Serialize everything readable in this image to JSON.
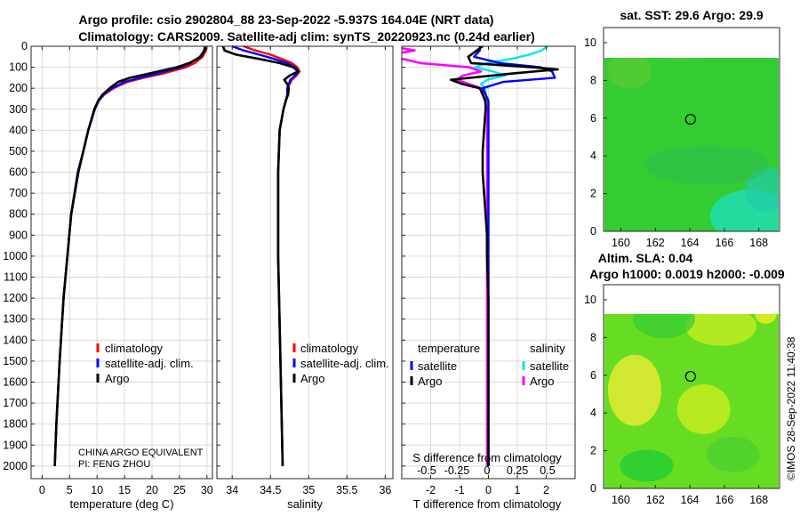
{
  "title_line1": "Argo profile: csio 2902804_88 23-Sep-2022 -5.937S 164.04E (NRT data)",
  "title_line2": "Climatology: CARS2009. Satellite-adj clim: synTS_20220923.nc (0.24d earlier)",
  "side_stamp": "©IMOS 28-Sep-2022 11:40:38",
  "colors": {
    "climatology": "#ff0000",
    "satellite": "#0000ff",
    "argo": "#000000",
    "sal_satellite": "#00e5ee",
    "sal_argo": "#ff00ff",
    "map_green": "#22cc33",
    "map_teal": "#22ddaa",
    "map_yellow": "#ccee22"
  },
  "chart_data": [
    {
      "type": "line",
      "name": "temperature",
      "xlabel": "temperature (deg C)",
      "ylabel": "",
      "xlim": [
        -2,
        31
      ],
      "ylim": [
        0,
        2060
      ],
      "y_reversed": true,
      "xticks": [
        0,
        5,
        10,
        15,
        20,
        25,
        30
      ],
      "yticks": [
        0,
        100,
        200,
        300,
        400,
        500,
        600,
        700,
        800,
        900,
        1000,
        1100,
        1200,
        1300,
        1400,
        1500,
        1600,
        1700,
        1800,
        1900,
        2000
      ],
      "legend": [
        "climatology",
        "satellite-adj. clim.",
        "Argo"
      ],
      "legend_position": "lower-right",
      "annotation": [
        "CHINA ARGO EQUIVALENT",
        "PI: FENG ZHOU"
      ],
      "series": [
        {
          "name": "climatology",
          "color": "#ff0000",
          "depth": [
            0,
            20,
            50,
            80,
            100,
            130,
            150,
            170,
            200,
            230,
            260,
            300,
            400,
            500,
            600,
            800,
            1000,
            1200,
            1500,
            1800,
            2000
          ],
          "values": [
            29.9,
            29.8,
            29.2,
            27.8,
            26.2,
            22.0,
            18.5,
            15.5,
            13.0,
            11.3,
            10.3,
            9.6,
            8.4,
            7.5,
            6.5,
            5.3,
            4.6,
            3.9,
            3.2,
            2.6,
            2.3
          ]
        },
        {
          "name": "satellite-adj. clim.",
          "color": "#0000ff",
          "depth": [
            0,
            20,
            50,
            80,
            100,
            130,
            150,
            170,
            200,
            230,
            260,
            300,
            400,
            500,
            600,
            800,
            1000,
            1200,
            1500,
            1800,
            2000
          ],
          "values": [
            29.6,
            29.5,
            28.7,
            27.0,
            25.2,
            21.0,
            17.8,
            15.0,
            12.7,
            11.2,
            10.3,
            9.6,
            8.4,
            7.5,
            6.5,
            5.3,
            4.6,
            3.9,
            3.2,
            2.6,
            2.3
          ]
        },
        {
          "name": "Argo",
          "color": "#000000",
          "depth": [
            0,
            20,
            50,
            80,
            100,
            130,
            150,
            170,
            200,
            230,
            260,
            300,
            400,
            500,
            600,
            800,
            1000,
            1200,
            1500,
            1800,
            2000
          ],
          "values": [
            29.8,
            29.6,
            28.9,
            26.8,
            24.5,
            19.5,
            16.0,
            13.8,
            12.3,
            11.0,
            10.2,
            9.5,
            8.4,
            7.5,
            6.6,
            5.3,
            4.6,
            3.9,
            3.2,
            2.6,
            2.3
          ]
        }
      ]
    },
    {
      "type": "line",
      "name": "salinity",
      "xlabel": "salinity",
      "xlim": [
        33.8,
        36.1
      ],
      "ylim": [
        0,
        2060
      ],
      "y_reversed": true,
      "xticks": [
        34,
        34.5,
        35,
        35.5,
        36
      ],
      "xtick_labels": [
        "34",
        "34.5",
        "35",
        "35.5",
        "36"
      ],
      "legend": [
        "climatology",
        "satellite-adj. clim.",
        "Argo"
      ],
      "legend_position": "lower-right",
      "series": [
        {
          "name": "climatology",
          "color": "#ff0000",
          "depth": [
            0,
            20,
            40,
            60,
            80,
            100,
            120,
            140,
            160,
            180,
            200,
            230,
            260,
            300,
            400,
            600,
            800,
            1000,
            1500,
            2000
          ],
          "values": [
            34.15,
            34.3,
            34.5,
            34.65,
            34.78,
            34.85,
            34.88,
            34.84,
            34.78,
            34.75,
            34.72,
            34.72,
            34.7,
            34.67,
            34.62,
            34.6,
            34.6,
            34.6,
            34.63,
            34.66
          ]
        },
        {
          "name": "satellite-adj. clim.",
          "color": "#0000ff",
          "depth": [
            0,
            20,
            40,
            60,
            80,
            100,
            120,
            140,
            160,
            180,
            200,
            230,
            260,
            300,
            400,
            600,
            800,
            1000,
            1500,
            2000
          ],
          "values": [
            34.0,
            34.15,
            34.35,
            34.55,
            34.72,
            34.82,
            34.87,
            34.82,
            34.76,
            34.74,
            34.72,
            34.72,
            34.7,
            34.67,
            34.62,
            34.6,
            34.6,
            34.6,
            34.63,
            34.66
          ]
        },
        {
          "name": "Argo",
          "color": "#000000",
          "depth": [
            0,
            20,
            40,
            60,
            80,
            100,
            120,
            140,
            160,
            180,
            200,
            230,
            260,
            300,
            400,
            600,
            800,
            1000,
            1500,
            2000
          ],
          "values": [
            33.88,
            33.9,
            34.05,
            34.35,
            34.62,
            34.8,
            34.86,
            34.75,
            34.68,
            34.72,
            34.74,
            34.73,
            34.7,
            34.67,
            34.62,
            34.6,
            34.6,
            34.6,
            34.63,
            34.66
          ]
        }
      ]
    },
    {
      "type": "line",
      "name": "difference",
      "xlabel": "T difference from climatology",
      "xlabel_top": "S difference from climatology",
      "xlim": [
        -3,
        3
      ],
      "ylim": [
        0,
        2060
      ],
      "y_reversed": true,
      "xticks": [
        -2,
        -1,
        0,
        1,
        2
      ],
      "xtick_labels": [
        "-2",
        "-1",
        "0",
        "1",
        "2"
      ],
      "s_xticks": [
        -0.5,
        -0.25,
        0,
        0.25,
        0.5
      ],
      "s_xtick_labels": [
        "-0.5",
        "-0.25",
        "0",
        "0.25",
        "0.5"
      ],
      "legend_temperature": [
        "temperature",
        "satellite",
        "Argo"
      ],
      "legend_salinity": [
        "salinity",
        "satellite",
        "Argo"
      ],
      "series": [
        {
          "name": "temperature satellite",
          "color": "#0000ff",
          "depth": [
            0,
            20,
            50,
            80,
            100,
            120,
            150,
            170,
            200,
            230,
            260,
            300,
            400,
            600,
            800,
            1000,
            2000
          ],
          "values": [
            -0.3,
            -0.3,
            -0.5,
            0.4,
            1.8,
            2.2,
            2.3,
            0.5,
            -0.2,
            -0.1,
            0,
            0,
            0,
            0,
            0,
            0,
            0
          ]
        },
        {
          "name": "temperature Argo",
          "color": "#000000",
          "depth": [
            0,
            20,
            50,
            80,
            100,
            110,
            130,
            160,
            180,
            200,
            230,
            260,
            300,
            400,
            500,
            600,
            700,
            800,
            900,
            1000,
            1200,
            1500,
            1800,
            2000
          ],
          "values": [
            -0.2,
            -0.4,
            -0.7,
            -0.6,
            1.5,
            2.4,
            0.8,
            -1.3,
            -0.9,
            -0.3,
            -0.2,
            -0.1,
            -0.1,
            -0.15,
            -0.2,
            -0.2,
            -0.15,
            -0.1,
            -0.05,
            -0.05,
            0,
            0,
            0,
            0
          ]
        },
        {
          "name": "salinity satellite",
          "color": "#00e5ee",
          "depth": [
            0,
            20,
            40,
            60,
            80,
            100,
            120,
            140,
            160,
            180,
            200,
            260,
            300,
            500,
            1000,
            1500,
            2000
          ],
          "values": [
            0.5,
            0.45,
            0.35,
            0.2,
            0.0,
            -0.1,
            0.05,
            0.15,
            0.0,
            -0.05,
            -0.02,
            0,
            0,
            0,
            0,
            0,
            0
          ]
        },
        {
          "name": "salinity Argo",
          "color": "#ff00ff",
          "depth": [
            0,
            20,
            40,
            60,
            80,
            100,
            120,
            140,
            160,
            180,
            200,
            260,
            300,
            500,
            1000,
            1500,
            2000
          ],
          "values": [
            -0.8,
            -0.6,
            -0.8,
            -0.7,
            -0.55,
            -0.15,
            -0.05,
            -0.2,
            -0.25,
            -0.15,
            -0.05,
            -0.02,
            0,
            0,
            0,
            0,
            0
          ]
        }
      ]
    },
    {
      "type": "heatmap",
      "name": "sst_map",
      "title": "sat. SST: 29.6 Argo: 29.9",
      "xlim": [
        159,
        169.2
      ],
      "ylim": [
        0,
        10.8
      ],
      "xticks": [
        160,
        162,
        164,
        166,
        168
      ],
      "yticks": [
        0,
        2,
        4,
        6,
        8,
        10
      ],
      "marker": {
        "lon": 164.04,
        "lat": 5.94
      }
    },
    {
      "type": "heatmap",
      "name": "sla_map",
      "title": "Altim. SLA: 0.04",
      "subtitle": "Argo h1000: 0.0019 h2000: -0.009",
      "xlim": [
        159,
        169.2
      ],
      "ylim": [
        0,
        10.8
      ],
      "xticks": [
        160,
        162,
        164,
        166,
        168
      ],
      "yticks": [
        0,
        2,
        4,
        6,
        8,
        10
      ],
      "marker": {
        "lon": 164.04,
        "lat": 5.94
      }
    }
  ]
}
